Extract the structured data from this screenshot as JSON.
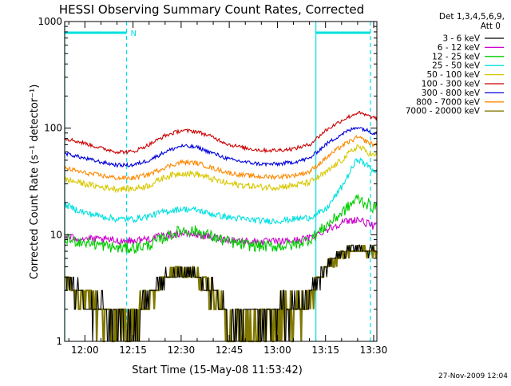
{
  "chart_data": {
    "type": "line",
    "title": "HESSI Observing Summary Count Rates, Corrected",
    "xlabel": "Start Time (15-May-08 11:53:42)",
    "ylabel": "Corrected Count Rate (s⁻¹ detector⁻¹)",
    "y_scale": "log",
    "ylim": [
      1,
      1000
    ],
    "xlim": [
      "11:53:42",
      "13:31:00"
    ],
    "x_ticks": [
      "12:00",
      "12:15",
      "12:30",
      "12:45",
      "13:00",
      "13:15",
      "13:30"
    ],
    "y_ticks": [
      "1",
      "10",
      "100",
      "1000"
    ],
    "footer": "27-Nov-2009 12:04",
    "legend": {
      "position": "right",
      "header": [
        "Det 1,3,4,5,6,9,",
        "Att 0"
      ]
    },
    "markers": {
      "solid_lines": [
        "11:53:42",
        "13:12:00"
      ],
      "dashed_lines": [
        "12:13:00",
        "13:29:00"
      ],
      "night_label": "N",
      "bars": [
        {
          "from": "11:53:42",
          "to": "12:13:00"
        },
        {
          "from": "13:12:00",
          "to": "13:29:00"
        }
      ]
    },
    "x": [
      "11:54",
      "12:00",
      "12:05",
      "12:10",
      "12:15",
      "12:20",
      "12:25",
      "12:30",
      "12:35",
      "12:40",
      "12:45",
      "12:50",
      "12:55",
      "13:00",
      "13:05",
      "13:10",
      "13:15",
      "13:20",
      "13:25",
      "13:30"
    ],
    "series": [
      {
        "name": "3 - 6 keV",
        "color": "#000000",
        "values": [
          3.5,
          2.5,
          2.0,
          1.5,
          1.3,
          2.5,
          4.0,
          4.5,
          4.0,
          2.8,
          1.5,
          1.6,
          1.6,
          1.8,
          2.0,
          2.5,
          5.0,
          6.5,
          7.5,
          7.0
        ]
      },
      {
        "name": "6 - 12 keV",
        "color": "#cc00cc",
        "values": [
          9.5,
          9.2,
          9.0,
          8.8,
          8.8,
          9.2,
          9.8,
          10.3,
          10.0,
          9.4,
          9.0,
          8.7,
          8.6,
          8.6,
          8.8,
          9.3,
          11.0,
          13.0,
          14.0,
          12.0
        ]
      },
      {
        "name": "12 - 25 keV",
        "color": "#00cc00",
        "values": [
          9.0,
          8.5,
          8.0,
          7.5,
          7.5,
          8.0,
          9.5,
          11.0,
          10.8,
          9.5,
          8.5,
          8.0,
          7.8,
          7.8,
          8.0,
          9.0,
          12.0,
          16.0,
          22.0,
          18.0
        ]
      },
      {
        "name": "25 - 50 keV",
        "color": "#00e0e0",
        "values": [
          19,
          16,
          15,
          14,
          14,
          15,
          16.5,
          17.5,
          17.0,
          15.5,
          14.5,
          14.0,
          13.5,
          13.5,
          14.0,
          14.5,
          17.0,
          28.0,
          52.0,
          40.0
        ]
      },
      {
        "name": "50 - 100 keV",
        "color": "#d8c800",
        "values": [
          33,
          30,
          28,
          27,
          27,
          29,
          35,
          38,
          37,
          33,
          30,
          29,
          28,
          28,
          29,
          31,
          38,
          50,
          68,
          55
        ]
      },
      {
        "name": "100 - 300 keV",
        "color": "#cc0000",
        "values": [
          80,
          72,
          65,
          60,
          60,
          70,
          85,
          95,
          93,
          82,
          70,
          65,
          62,
          62,
          64,
          70,
          95,
          118,
          140,
          125
        ]
      },
      {
        "name": "300 - 800 keV",
        "color": "#0000dd",
        "values": [
          58,
          52,
          48,
          45,
          45,
          50,
          60,
          68,
          66,
          58,
          51,
          48,
          46,
          46,
          48,
          52,
          70,
          88,
          103,
          90
        ]
      },
      {
        "name": "800 - 7000 keV",
        "color": "#ff8800",
        "values": [
          42,
          38,
          36,
          34,
          34,
          37,
          43,
          48,
          47,
          42,
          38,
          36,
          35,
          35,
          36,
          39,
          52,
          68,
          82,
          70
        ]
      },
      {
        "name": "7000 - 20000 keV",
        "color": "#807800",
        "values": [
          3.5,
          2.5,
          2.0,
          1.5,
          1.3,
          2.5,
          4.0,
          4.5,
          4.0,
          2.8,
          1.5,
          1.6,
          1.6,
          1.8,
          2.0,
          2.5,
          5.0,
          6.5,
          7.5,
          7.0
        ]
      }
    ]
  }
}
